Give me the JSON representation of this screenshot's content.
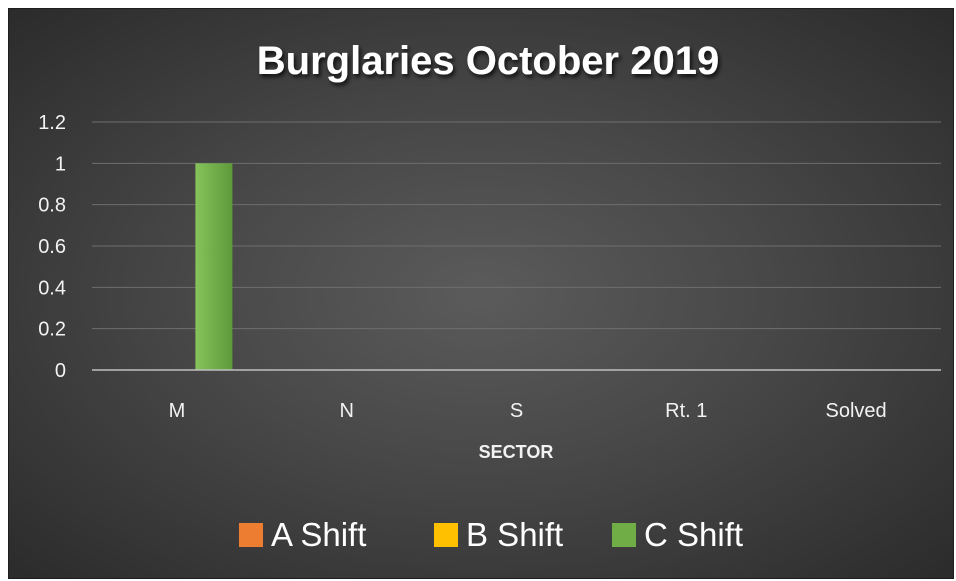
{
  "chart_data": {
    "type": "bar",
    "title": "Burglaries October 2019",
    "xlabel": "SECTOR",
    "ylabel": "",
    "categories": [
      "M",
      "N",
      "S",
      "Rt. 1",
      "Solved"
    ],
    "series": [
      {
        "name": "A Shift",
        "color": "#ed7d31",
        "values": [
          0,
          0,
          0,
          0,
          0
        ]
      },
      {
        "name": "B Shift",
        "color": "#ffc000",
        "values": [
          0,
          0,
          0,
          0,
          0
        ]
      },
      {
        "name": "C Shift",
        "color": "#70ad47",
        "values": [
          1,
          0,
          0,
          0,
          0
        ]
      }
    ],
    "ylim": [
      0,
      1.2
    ],
    "yticks": [
      "0",
      "0.2",
      "0.4",
      "0.6",
      "0.8",
      "1",
      "1.2"
    ],
    "grid": true,
    "legend_position": "bottom"
  }
}
